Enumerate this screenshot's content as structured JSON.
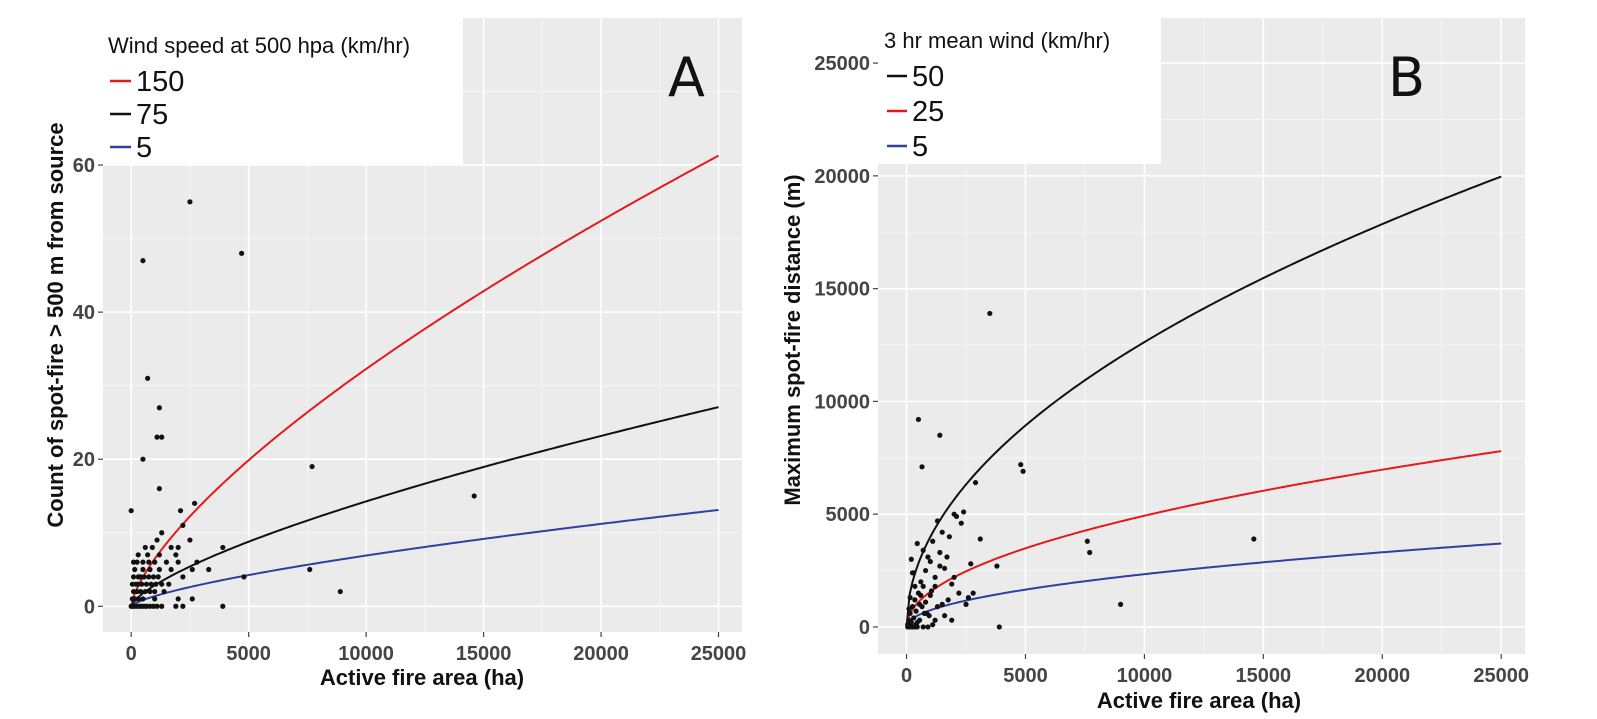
{
  "chart_data": [
    {
      "type": "scatter",
      "panel_letter": "A",
      "xlabel": "Active fire area (ha)",
      "ylabel": "Count of spot-fire > 500 m from source",
      "xlim": [
        -1200,
        26000
      ],
      "ylim": [
        -3.5,
        80
      ],
      "x_ticks": [
        0,
        5000,
        10000,
        15000,
        20000,
        25000
      ],
      "y_ticks": [
        0,
        20,
        40,
        60
      ],
      "grid": true,
      "legend": {
        "title": "Wind speed at 500 hpa (km/hr)",
        "placement": "top-left",
        "entries": [
          {
            "label": "150",
            "color": "#e41a1c"
          },
          {
            "label": "75",
            "color": "#111111"
          },
          {
            "label": "5",
            "color": "#3040a0"
          }
        ]
      },
      "series": [
        {
          "name": "150",
          "color": "#e41a1c",
          "fit_scale": 0.05114,
          "fit_exponent": 0.7
        },
        {
          "name": "75",
          "color": "#111111",
          "fit_scale": 0.0226,
          "fit_exponent": 0.7
        },
        {
          "name": "5",
          "color": "#3040a0",
          "fit_scale": 0.01093,
          "fit_exponent": 0.7
        }
      ],
      "points": [
        [
          0,
          0
        ],
        [
          80,
          0
        ],
        [
          150,
          0
        ],
        [
          250,
          0
        ],
        [
          350,
          0
        ],
        [
          450,
          0
        ],
        [
          550,
          0
        ],
        [
          650,
          0
        ],
        [
          800,
          0
        ],
        [
          950,
          0
        ],
        [
          1100,
          0
        ],
        [
          1300,
          0
        ],
        [
          1900,
          0
        ],
        [
          2200,
          0
        ],
        [
          3900,
          0
        ],
        [
          50,
          1
        ],
        [
          150,
          1
        ],
        [
          300,
          1
        ],
        [
          500,
          1
        ],
        [
          1000,
          1
        ],
        [
          2000,
          1
        ],
        [
          2600,
          1
        ],
        [
          100,
          2
        ],
        [
          250,
          2
        ],
        [
          400,
          2
        ],
        [
          600,
          2
        ],
        [
          800,
          2
        ],
        [
          1000,
          2
        ],
        [
          1400,
          2
        ],
        [
          8900,
          2
        ],
        [
          50,
          3
        ],
        [
          200,
          3
        ],
        [
          300,
          3
        ],
        [
          450,
          3
        ],
        [
          650,
          3
        ],
        [
          850,
          3
        ],
        [
          1050,
          3
        ],
        [
          1300,
          3
        ],
        [
          1600,
          3
        ],
        [
          100,
          4
        ],
        [
          300,
          4
        ],
        [
          400,
          4
        ],
        [
          550,
          4
        ],
        [
          750,
          4
        ],
        [
          950,
          4
        ],
        [
          1150,
          4
        ],
        [
          2200,
          4
        ],
        [
          4800,
          4
        ],
        [
          150,
          5
        ],
        [
          500,
          5
        ],
        [
          800,
          5
        ],
        [
          1200,
          5
        ],
        [
          1700,
          5
        ],
        [
          2600,
          5
        ],
        [
          3300,
          5
        ],
        [
          7600,
          5
        ],
        [
          100,
          6
        ],
        [
          250,
          6
        ],
        [
          500,
          6
        ],
        [
          750,
          6
        ],
        [
          1000,
          6
        ],
        [
          1500,
          6
        ],
        [
          2000,
          6
        ],
        [
          2800,
          6
        ],
        [
          300,
          7
        ],
        [
          700,
          7
        ],
        [
          1200,
          7
        ],
        [
          1900,
          7
        ],
        [
          600,
          8
        ],
        [
          900,
          8
        ],
        [
          1700,
          8
        ],
        [
          2000,
          8
        ],
        [
          3900,
          8
        ],
        [
          1100,
          9
        ],
        [
          2500,
          9
        ],
        [
          1300,
          10
        ],
        [
          2200,
          11
        ],
        [
          0,
          13
        ],
        [
          2100,
          13
        ],
        [
          2700,
          14
        ],
        [
          14600,
          15
        ],
        [
          1200,
          16
        ],
        [
          7700,
          19
        ],
        [
          500,
          20
        ],
        [
          1100,
          23
        ],
        [
          1300,
          23
        ],
        [
          1200,
          27
        ],
        [
          700,
          31
        ],
        [
          500,
          47
        ],
        [
          4700,
          48
        ],
        [
          2500,
          55
        ]
      ]
    },
    {
      "type": "scatter",
      "panel_letter": "B",
      "xlabel": "Active fire area (ha)",
      "ylabel": "Maximum spot-fire distance (m)",
      "xlim": [
        -1200,
        26000
      ],
      "ylim": [
        -1200,
        27000
      ],
      "x_ticks": [
        0,
        5000,
        10000,
        15000,
        20000,
        25000
      ],
      "y_ticks": [
        0,
        5000,
        10000,
        15000,
        20000,
        25000
      ],
      "grid": true,
      "legend": {
        "title": "3 hr mean wind (km/hr)",
        "placement": "top-left",
        "entries": [
          {
            "label": "50",
            "color": "#111111"
          },
          {
            "label": "25",
            "color": "#e41a1c"
          },
          {
            "label": "5",
            "color": "#3040a0"
          }
        ]
      },
      "series": [
        {
          "name": "50",
          "color": "#111111",
          "fit_scale": 126.3,
          "fit_exponent": 0.5
        },
        {
          "name": "25",
          "color": "#e41a1c",
          "fit_scale": 49.3,
          "fit_exponent": 0.5
        },
        {
          "name": "5",
          "color": "#3040a0",
          "fit_scale": 23.4,
          "fit_exponent": 0.5
        }
      ],
      "points": [
        [
          50,
          100
        ],
        [
          100,
          300
        ],
        [
          150,
          600
        ],
        [
          200,
          200
        ],
        [
          250,
          900
        ],
        [
          300,
          400
        ],
        [
          350,
          1200
        ],
        [
          400,
          700
        ],
        [
          500,
          1500
        ],
        [
          550,
          300
        ],
        [
          600,
          2000
        ],
        [
          650,
          900
        ],
        [
          700,
          1800
        ],
        [
          800,
          2500
        ],
        [
          850,
          600
        ],
        [
          900,
          3100
        ],
        [
          1000,
          1400
        ],
        [
          1100,
          3800
        ],
        [
          1200,
          2200
        ],
        [
          1300,
          4700
        ],
        [
          1400,
          3300
        ],
        [
          1500,
          1000
        ],
        [
          1600,
          2600
        ],
        [
          1800,
          4000
        ],
        [
          1900,
          1900
        ],
        [
          2100,
          4900
        ],
        [
          2200,
          1500
        ],
        [
          2400,
          5100
        ],
        [
          2500,
          1000
        ],
        [
          2700,
          2800
        ],
        [
          2900,
          6400
        ],
        [
          3100,
          3900
        ],
        [
          3500,
          13900
        ],
        [
          3800,
          2700
        ],
        [
          3900,
          0
        ],
        [
          4800,
          7200
        ],
        [
          4900,
          6900
        ],
        [
          7600,
          3800
        ],
        [
          7700,
          3300
        ],
        [
          9000,
          1000
        ],
        [
          14600,
          3900
        ],
        [
          1400,
          8500
        ],
        [
          500,
          9200
        ],
        [
          650,
          7100
        ],
        [
          200,
          3000
        ],
        [
          300,
          2400
        ],
        [
          450,
          3700
        ],
        [
          700,
          3400
        ],
        [
          1000,
          2900
        ],
        [
          1200,
          1800
        ],
        [
          1500,
          4200
        ],
        [
          1700,
          3100
        ],
        [
          2000,
          5000
        ],
        [
          2300,
          4600
        ],
        [
          1600,
          500
        ],
        [
          1900,
          300
        ],
        [
          2600,
          1300
        ],
        [
          1100,
          100
        ],
        [
          700,
          0
        ],
        [
          400,
          100
        ],
        [
          800,
          1100
        ],
        [
          950,
          500
        ],
        [
          1300,
          900
        ],
        [
          600,
          1400
        ],
        [
          350,
          1800
        ],
        [
          250,
          2400
        ],
        [
          150,
          1300
        ],
        [
          100,
          800
        ],
        [
          450,
          200
        ],
        [
          550,
          1000
        ],
        [
          750,
          600
        ],
        [
          1050,
          1600
        ],
        [
          1400,
          2700
        ],
        [
          2800,
          1500
        ],
        [
          2000,
          2200
        ],
        [
          1750,
          1200
        ],
        [
          50,
          0
        ],
        [
          150,
          0
        ],
        [
          250,
          0
        ],
        [
          350,
          0
        ],
        [
          450,
          0
        ],
        [
          900,
          0
        ],
        [
          1200,
          300
        ]
      ]
    }
  ]
}
